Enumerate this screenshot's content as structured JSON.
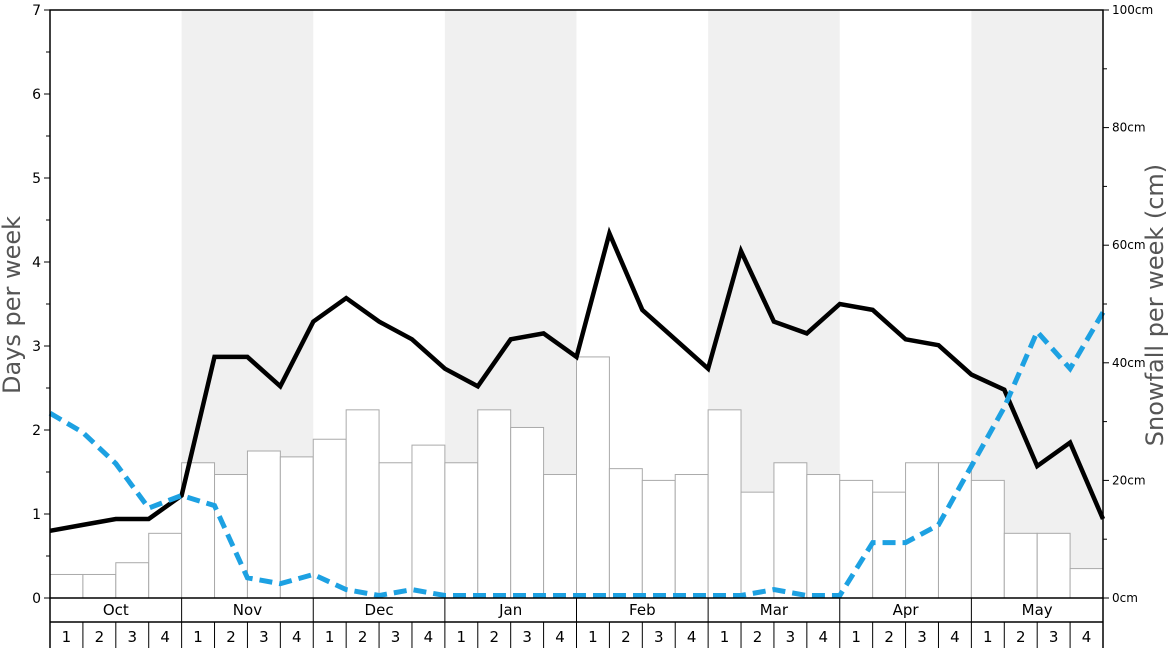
{
  "chart_data": {
    "type": "bar",
    "left_axis": {
      "label": "Days per week",
      "range": [
        0,
        7
      ],
      "ticks": [
        "0",
        "1",
        "2",
        "3",
        "4",
        "5",
        "6",
        "7"
      ]
    },
    "right_axis": {
      "label": "Snowfall per week (cm)",
      "range": [
        0,
        100
      ],
      "ticks": [
        "0cm",
        "20cm",
        "40cm",
        "60cm",
        "80cm",
        "100cm"
      ]
    },
    "months": [
      "Oct",
      "Nov",
      "Dec",
      "Jan",
      "Feb",
      "Mar",
      "Apr",
      "May"
    ],
    "weeks": [
      "1",
      "2",
      "3",
      "4"
    ],
    "shaded_months": [
      "Nov",
      "Jan",
      "Mar",
      "May"
    ],
    "series": [
      {
        "kind": "bar",
        "axis": "right",
        "color": "#ffffff",
        "stroke": "#aaaaaa",
        "values": [
          4,
          4,
          6,
          11,
          23,
          21,
          25,
          24,
          27,
          32,
          23,
          26,
          23,
          32,
          29,
          21,
          41,
          22,
          20,
          21,
          32,
          18,
          23,
          21,
          20,
          18,
          23,
          23,
          20,
          11,
          11,
          5
        ]
      },
      {
        "kind": "line",
        "axis": "left",
        "color": "#000000",
        "dashed": false,
        "values": [
          0.8,
          0.87,
          0.94,
          0.94,
          1.22,
          2.87,
          2.87,
          2.52,
          3.29,
          3.57,
          3.29,
          3.08,
          2.73,
          2.52,
          3.08,
          3.15,
          2.87,
          4.34,
          3.43,
          3.08,
          2.73,
          4.13,
          3.29,
          3.15,
          3.5,
          3.43,
          3.08,
          3.01,
          2.66,
          2.48,
          1.57,
          1.85,
          0.94
        ]
      },
      {
        "kind": "line",
        "axis": "left",
        "color": "#1da1e2",
        "dashed": true,
        "values": [
          2.2,
          1.97,
          1.6,
          1.07,
          1.22,
          1.1,
          0.24,
          0.17,
          0.28,
          0.1,
          0.03,
          0.1,
          0.03,
          0.03,
          0.03,
          0.03,
          0.03,
          0.03,
          0.03,
          0.03,
          0.03,
          0.03,
          0.1,
          0.03,
          0.03,
          0.66,
          0.66,
          0.87,
          1.57,
          2.27,
          3.17,
          2.73,
          3.4
        ]
      }
    ]
  }
}
